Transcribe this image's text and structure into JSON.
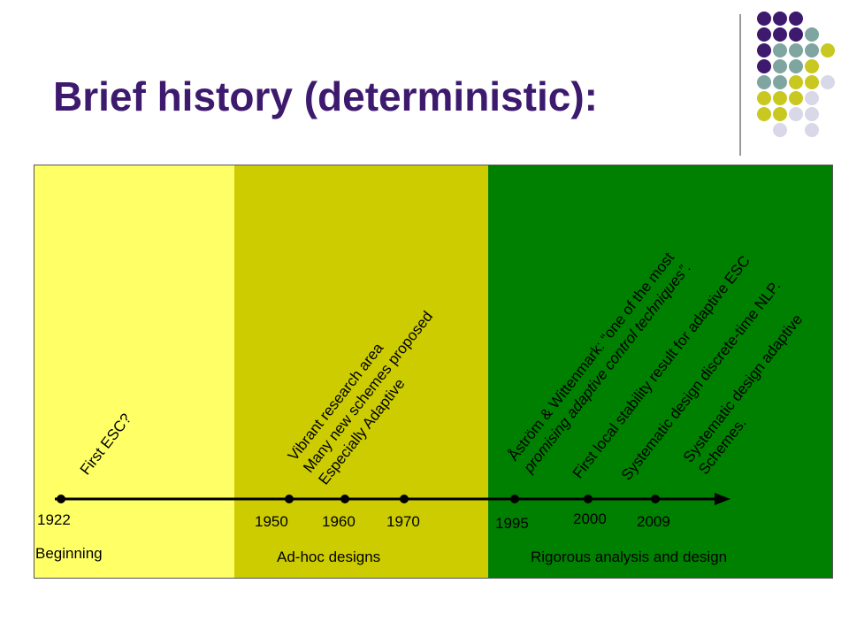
{
  "slide": {
    "title": "Brief history (deterministic):"
  },
  "decor": {
    "dot_colors": [
      "#3d1a6e",
      "#7fa5a0",
      "#c8c820",
      "#d8d8e8"
    ]
  },
  "eras": [
    {
      "label": "Beginning",
      "color": "#ffff66"
    },
    {
      "label": "Ad-hoc designs",
      "color": "#cccc00"
    },
    {
      "label": "Rigorous analysis and design",
      "color": "#008000"
    }
  ],
  "years": [
    "1922",
    "1950",
    "1960",
    "1970",
    "1995",
    "2000",
    "2009"
  ],
  "annotations": {
    "first_esc": "First ESC?",
    "vibrant_lines": [
      "Vibrant research area",
      "Many new schemes proposed",
      "Especially Adaptive"
    ],
    "astrom_line1": "Åström & Wittenmark: “one of the most",
    "astrom_line2": "promising adaptive control techniques”.",
    "first_local": "First local stability result for adaptive ESC",
    "systematic_nlp": "Systematic design discrete-time NLP.",
    "systematic_adaptive_lines": [
      "Systematic design adaptive",
      "Schemes."
    ]
  }
}
